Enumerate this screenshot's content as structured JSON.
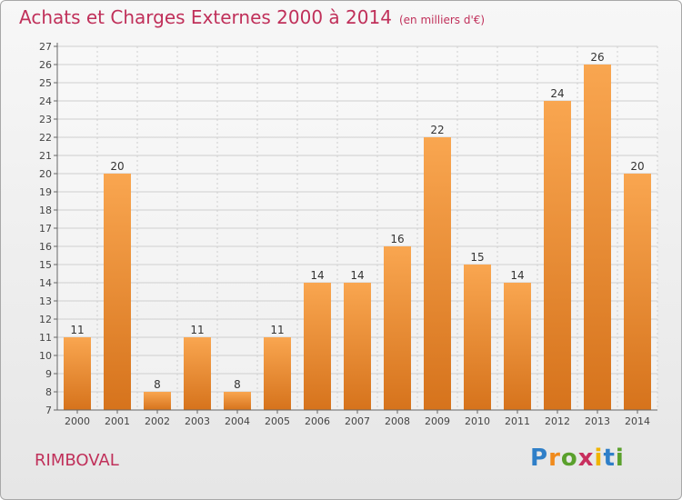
{
  "header": {
    "title": "Achats et Charges Externes 2000 à 2014",
    "subtitle": "(en milliers d'€)"
  },
  "footer": {
    "town": "RIMBOVAL",
    "logo": {
      "letters": [
        "P",
        "r",
        "o",
        "x",
        "i",
        "t",
        "i"
      ],
      "colors": [
        "#2f7fc8",
        "#f08a1c",
        "#5aa02c",
        "#c82f5e",
        "#f0b400",
        "#2f7fc8",
        "#5aa02c"
      ]
    }
  },
  "colors": {
    "bar_top": "#f9a650",
    "bar_bottom": "#d6731c",
    "title": "#c0305a",
    "grid": "#cfcfcf"
  },
  "chart_data": {
    "type": "bar",
    "title": "Achats et Charges Externes 2000 à 2014",
    "subtitle": "(en milliers d'€)",
    "xlabel": "",
    "ylabel": "",
    "categories": [
      "2000",
      "2001",
      "2002",
      "2003",
      "2004",
      "2005",
      "2006",
      "2007",
      "2008",
      "2009",
      "2010",
      "2011",
      "2012",
      "2013",
      "2014"
    ],
    "values": [
      11,
      20,
      8,
      11,
      8,
      11,
      14,
      14,
      16,
      22,
      15,
      14,
      24,
      26,
      20
    ],
    "data_labels": [
      "11",
      "20",
      "8",
      "11",
      "8",
      "11",
      "14",
      "14",
      "16",
      "22",
      "15",
      "14",
      "24",
      "26",
      "20"
    ],
    "ylim": [
      7,
      27
    ],
    "yticks": [
      "7",
      "8",
      "9",
      "10",
      "11",
      "12",
      "13",
      "14",
      "15",
      "16",
      "17",
      "18",
      "19",
      "20",
      "21",
      "22",
      "23",
      "24",
      "25",
      "26",
      "27"
    ],
    "grid": true,
    "legend": "none"
  }
}
